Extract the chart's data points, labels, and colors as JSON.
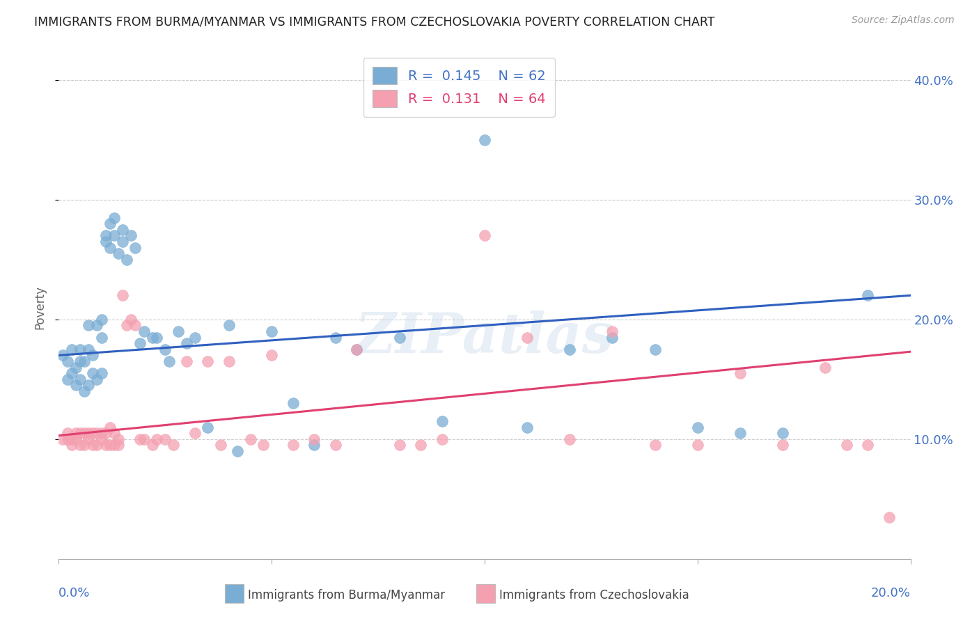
{
  "title": "IMMIGRANTS FROM BURMA/MYANMAR VS IMMIGRANTS FROM CZECHOSLOVAKIA POVERTY CORRELATION CHART",
  "source": "Source: ZipAtlas.com",
  "ylabel": "Poverty",
  "xlim": [
    0.0,
    0.2
  ],
  "ylim": [
    0.0,
    0.42
  ],
  "yticks": [
    0.1,
    0.2,
    0.3,
    0.4
  ],
  "ytick_labels": [
    "10.0%",
    "20.0%",
    "30.0%",
    "40.0%"
  ],
  "series1_color": "#7aadd4",
  "series2_color": "#f4a0b0",
  "series1_label": "Immigrants from Burma/Myanmar",
  "series2_label": "Immigrants from Czechoslovakia",
  "R1": 0.145,
  "N1": 62,
  "R2": 0.131,
  "N2": 64,
  "line1_color": "#3060c0",
  "line2_color": "#e04070",
  "watermark": "ZIPatlas",
  "background_color": "#ffffff",
  "grid_color": "#cccccc",
  "axis_color": "#4472C4",
  "legend_text_color1": "#4472C4",
  "legend_text_color2": "#e04070",
  "series1_x": [
    0.001,
    0.002,
    0.002,
    0.003,
    0.003,
    0.004,
    0.004,
    0.005,
    0.005,
    0.005,
    0.006,
    0.006,
    0.007,
    0.007,
    0.007,
    0.008,
    0.008,
    0.009,
    0.009,
    0.01,
    0.01,
    0.01,
    0.011,
    0.011,
    0.012,
    0.012,
    0.013,
    0.013,
    0.014,
    0.015,
    0.015,
    0.016,
    0.017,
    0.018,
    0.019,
    0.02,
    0.022,
    0.023,
    0.025,
    0.026,
    0.028,
    0.03,
    0.032,
    0.035,
    0.04,
    0.042,
    0.05,
    0.055,
    0.06,
    0.065,
    0.07,
    0.08,
    0.09,
    0.1,
    0.11,
    0.12,
    0.13,
    0.14,
    0.15,
    0.16,
    0.17,
    0.19
  ],
  "series1_y": [
    0.17,
    0.15,
    0.165,
    0.155,
    0.175,
    0.145,
    0.16,
    0.15,
    0.165,
    0.175,
    0.14,
    0.165,
    0.145,
    0.175,
    0.195,
    0.155,
    0.17,
    0.15,
    0.195,
    0.155,
    0.185,
    0.2,
    0.265,
    0.27,
    0.26,
    0.28,
    0.27,
    0.285,
    0.255,
    0.265,
    0.275,
    0.25,
    0.27,
    0.26,
    0.18,
    0.19,
    0.185,
    0.185,
    0.175,
    0.165,
    0.19,
    0.18,
    0.185,
    0.11,
    0.195,
    0.09,
    0.19,
    0.13,
    0.095,
    0.185,
    0.175,
    0.185,
    0.115,
    0.35,
    0.11,
    0.175,
    0.185,
    0.175,
    0.11,
    0.105,
    0.105,
    0.22
  ],
  "series2_x": [
    0.001,
    0.002,
    0.002,
    0.003,
    0.003,
    0.004,
    0.004,
    0.005,
    0.005,
    0.006,
    0.006,
    0.007,
    0.007,
    0.008,
    0.008,
    0.009,
    0.009,
    0.01,
    0.01,
    0.011,
    0.011,
    0.012,
    0.012,
    0.013,
    0.013,
    0.014,
    0.014,
    0.015,
    0.016,
    0.017,
    0.018,
    0.019,
    0.02,
    0.022,
    0.023,
    0.025,
    0.027,
    0.03,
    0.032,
    0.035,
    0.038,
    0.04,
    0.045,
    0.048,
    0.05,
    0.055,
    0.06,
    0.065,
    0.07,
    0.08,
    0.085,
    0.09,
    0.1,
    0.11,
    0.12,
    0.13,
    0.14,
    0.15,
    0.16,
    0.17,
    0.18,
    0.185,
    0.19,
    0.195
  ],
  "series2_y": [
    0.1,
    0.1,
    0.105,
    0.095,
    0.1,
    0.1,
    0.105,
    0.095,
    0.105,
    0.095,
    0.105,
    0.1,
    0.105,
    0.095,
    0.105,
    0.095,
    0.105,
    0.1,
    0.105,
    0.095,
    0.105,
    0.095,
    0.11,
    0.095,
    0.105,
    0.095,
    0.1,
    0.22,
    0.195,
    0.2,
    0.195,
    0.1,
    0.1,
    0.095,
    0.1,
    0.1,
    0.095,
    0.165,
    0.105,
    0.165,
    0.095,
    0.165,
    0.1,
    0.095,
    0.17,
    0.095,
    0.1,
    0.095,
    0.175,
    0.095,
    0.095,
    0.1,
    0.27,
    0.185,
    0.1,
    0.19,
    0.095,
    0.095,
    0.155,
    0.095,
    0.16,
    0.095,
    0.095,
    0.035
  ]
}
